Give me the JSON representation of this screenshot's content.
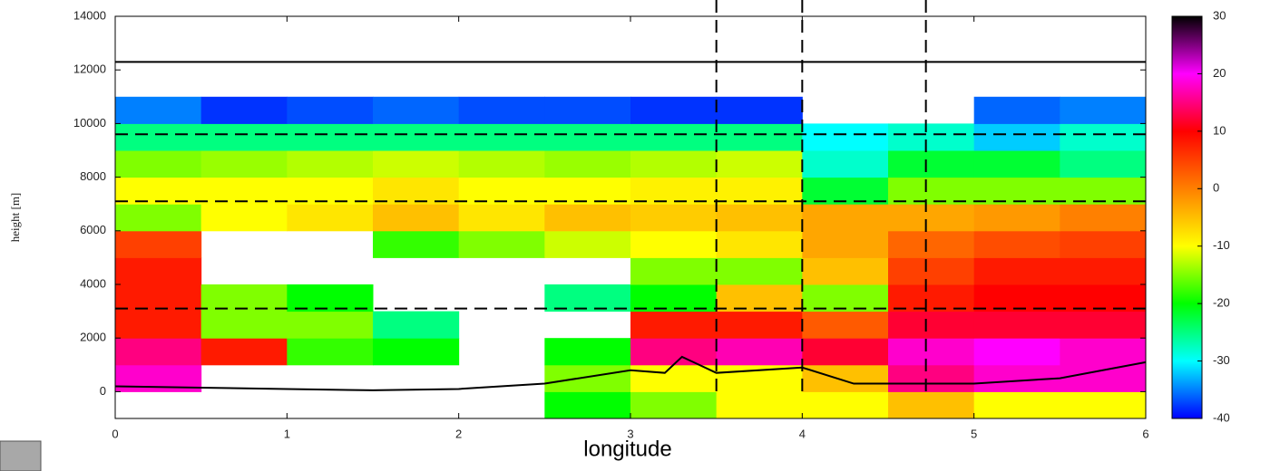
{
  "chart_data": {
    "type": "heatmap",
    "xlabel": "longitude",
    "ylabel": "height [m]",
    "xlim": [
      0,
      6
    ],
    "xticks": [
      0,
      1,
      2,
      3,
      4,
      5,
      6
    ],
    "ylim": [
      -1000,
      14000
    ],
    "yticks": [
      0,
      2000,
      4000,
      6000,
      8000,
      10000,
      12000,
      14000
    ],
    "colorbar": {
      "lim": [
        -40,
        30
      ],
      "ticks": [
        -40,
        -30,
        -20,
        -10,
        0,
        10,
        20,
        30
      ]
    },
    "colorscale": [
      {
        "value": -40,
        "color": "#0000ff"
      },
      {
        "value": -35,
        "color": "#0080ff"
      },
      {
        "value": -30,
        "color": "#00ffff"
      },
      {
        "value": -20,
        "color": "#00ff00"
      },
      {
        "value": -10,
        "color": "#ffff00"
      },
      {
        "value": 0,
        "color": "#ff8000"
      },
      {
        "value": 10,
        "color": "#ff0000"
      },
      {
        "value": 20,
        "color": "#ff00ff"
      },
      {
        "value": 30,
        "color": "#000000"
      }
    ],
    "x_edges": [
      0,
      0.5,
      1,
      1.5,
      2,
      2.5,
      3,
      3.5,
      4,
      4.5,
      5,
      5.5,
      6
    ],
    "y_edges": [
      -1000,
      0,
      1000,
      2000,
      3000,
      4000,
      5000,
      6000,
      7000,
      8000,
      9000,
      10000,
      11000
    ],
    "z": [
      [
        null,
        null,
        null,
        null,
        null,
        -20,
        -15,
        -10,
        -10,
        -5,
        -10,
        -10
      ],
      [
        18,
        null,
        null,
        null,
        null,
        -15,
        -10,
        -10,
        -5,
        15,
        18,
        18
      ],
      [
        15,
        8,
        -18,
        -20,
        null,
        -20,
        15,
        17,
        12,
        18,
        20,
        18
      ],
      [
        8,
        -15,
        -15,
        -25,
        null,
        null,
        8,
        8,
        3,
        12,
        12,
        12
      ],
      [
        8,
        -15,
        -20,
        null,
        null,
        -25,
        -20,
        -5,
        -15,
        8,
        10,
        10
      ],
      [
        8,
        null,
        null,
        null,
        null,
        null,
        -15,
        -15,
        -5,
        5,
        8,
        8
      ],
      [
        5,
        null,
        null,
        -18,
        -15,
        -12,
        -10,
        -8,
        -3,
        2,
        4,
        5
      ],
      [
        -15,
        -10,
        -8,
        -5,
        -8,
        -5,
        -6,
        -5,
        -3,
        -3,
        -2,
        0
      ],
      [
        -10,
        -10,
        -10,
        -8,
        -10,
        -10,
        -9,
        -9,
        -22,
        -15,
        -15,
        -15
      ],
      [
        -15,
        -14,
        -13,
        -12,
        -13,
        -14,
        -13,
        -12,
        -28,
        -22,
        -22,
        -25
      ],
      [
        -25,
        -25,
        -25,
        -25,
        -25,
        -25,
        -25,
        -25,
        -30,
        -28,
        -32,
        -28
      ],
      [
        -35,
        -38,
        -37,
        -36,
        -37,
        -37,
        -38,
        -38,
        null,
        null,
        -36,
        -35
      ]
    ],
    "ground": {
      "color": "#000000",
      "x": [
        0,
        0.5,
        1,
        1.5,
        2,
        2.5,
        3,
        3.2,
        3.3,
        3.5,
        4,
        4.3,
        4.5,
        5,
        5.5,
        6
      ],
      "values": [
        200,
        150,
        100,
        50,
        100,
        300,
        800,
        700,
        1300,
        700,
        900,
        300,
        300,
        300,
        500,
        1100
      ]
    },
    "hline_solid": 12300,
    "hlines_dashed": [
      3100,
      7100,
      9600
    ],
    "vlines_dashed": [
      3.5,
      4.0,
      4.72
    ]
  }
}
